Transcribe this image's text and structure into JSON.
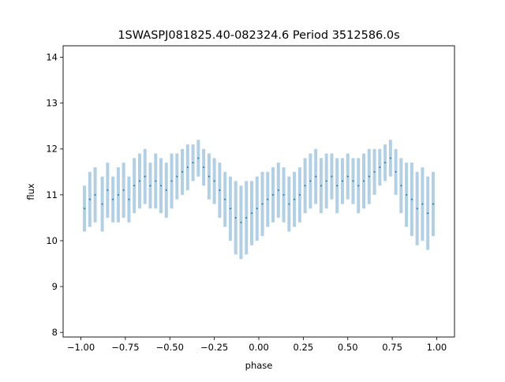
{
  "chart_data": {
    "type": "scatter",
    "title": "1SWASPJ081825.40-082324.6 Period 3512586.0s",
    "xlabel": "phase",
    "ylabel": "flux",
    "xlim": [
      -1.1,
      1.1
    ],
    "ylim": [
      7.9,
      14.25
    ],
    "xticks": [
      -1.0,
      -0.75,
      -0.5,
      -0.25,
      0.0,
      0.25,
      0.5,
      0.75,
      1.0
    ],
    "xtick_labels": [
      "−1.00",
      "−0.75",
      "−0.50",
      "−0.25",
      "0.00",
      "0.25",
      "0.50",
      "0.75",
      "1.00"
    ],
    "yticks": [
      8,
      9,
      10,
      11,
      12,
      13,
      14
    ],
    "ytick_labels": [
      "8",
      "9",
      "10",
      "11",
      "12",
      "13",
      "14"
    ],
    "grid": false,
    "marker_color": "#1f77b4",
    "series": [
      {
        "x": [
          -0.98,
          -0.95,
          -0.92,
          -0.88,
          -0.85,
          -0.82,
          -0.79,
          -0.76,
          -0.73,
          -0.7,
          -0.67,
          -0.64,
          -0.61,
          -0.58,
          -0.55,
          -0.52,
          -0.49,
          -0.46,
          -0.43,
          -0.4,
          -0.37,
          -0.34,
          -0.31,
          -0.28,
          -0.25,
          -0.22,
          -0.19,
          -0.16,
          -0.13,
          -0.1,
          -0.07,
          -0.04,
          -0.01,
          0.02,
          0.05,
          0.08,
          0.11,
          0.14,
          0.17,
          0.2,
          0.23,
          0.26,
          0.29,
          0.32,
          0.35,
          0.38,
          0.41,
          0.44,
          0.47,
          0.5,
          0.53,
          0.56,
          0.59,
          0.62,
          0.65,
          0.68,
          0.71,
          0.74,
          0.77,
          0.8,
          0.83,
          0.86,
          0.89,
          0.92,
          0.95,
          0.98
        ],
        "y": [
          10.7,
          10.9,
          11.0,
          10.8,
          11.1,
          10.9,
          11.0,
          11.1,
          10.9,
          11.2,
          11.3,
          11.4,
          11.2,
          11.3,
          11.2,
          11.1,
          11.3,
          11.4,
          11.5,
          11.6,
          11.7,
          11.8,
          11.6,
          11.4,
          11.3,
          11.1,
          10.9,
          10.7,
          10.5,
          10.4,
          10.5,
          10.6,
          10.7,
          10.8,
          10.9,
          11.0,
          11.1,
          11.0,
          10.8,
          10.9,
          11.0,
          11.2,
          11.3,
          11.4,
          11.2,
          11.3,
          11.4,
          11.2,
          11.3,
          11.4,
          11.3,
          11.2,
          11.3,
          11.4,
          11.5,
          11.6,
          11.7,
          11.8,
          11.5,
          11.2,
          11.0,
          10.9,
          10.7,
          10.8,
          10.6,
          10.8
        ],
        "spread": [
          0.5,
          0.6,
          0.6,
          0.6,
          0.6,
          0.5,
          0.6,
          0.6,
          0.5,
          0.6,
          0.6,
          0.6,
          0.5,
          0.6,
          0.6,
          0.6,
          0.6,
          0.5,
          0.5,
          0.5,
          0.4,
          0.4,
          0.4,
          0.5,
          0.5,
          0.6,
          0.6,
          0.7,
          0.8,
          0.8,
          0.8,
          0.7,
          0.7,
          0.7,
          0.6,
          0.6,
          0.6,
          0.6,
          0.6,
          0.6,
          0.6,
          0.6,
          0.6,
          0.6,
          0.6,
          0.6,
          0.5,
          0.6,
          0.5,
          0.5,
          0.5,
          0.6,
          0.6,
          0.6,
          0.5,
          0.4,
          0.4,
          0.4,
          0.5,
          0.6,
          0.7,
          0.8,
          0.8,
          0.8,
          0.8,
          0.7
        ]
      }
    ]
  }
}
